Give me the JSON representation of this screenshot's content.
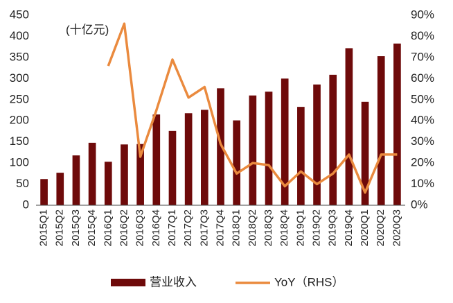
{
  "chart_data": {
    "type": "bar_line",
    "annotation": "(十亿元)",
    "categories": [
      "2015Q1",
      "2015Q2",
      "2015Q3",
      "2015Q4",
      "2016Q1",
      "2016Q2",
      "2016Q3",
      "2016Q4",
      "2017Q1",
      "2017Q2",
      "2017Q3",
      "2017Q4",
      "2018Q1",
      "2018Q2",
      "2018Q3",
      "2018Q4",
      "2019Q1",
      "2019Q2",
      "2019Q3",
      "2019Q4",
      "2020Q1",
      "2020Q2",
      "2020Q3"
    ],
    "series": [
      {
        "name": "营业收入",
        "type": "bar",
        "color": "#6e0a0a",
        "values": [
          62,
          77,
          118,
          148,
          103,
          144,
          145,
          215,
          176,
          218,
          226,
          277,
          201,
          260,
          269,
          300,
          233,
          286,
          309,
          372,
          245,
          353,
          383
        ]
      },
      {
        "name": "YoY（RHS）",
        "type": "line",
        "axis": "y2",
        "color": "#ea8a3e",
        "values": [
          null,
          null,
          null,
          null,
          66,
          86,
          23,
          45,
          69,
          51,
          56,
          29,
          15,
          20,
          19,
          9,
          16,
          10,
          15,
          24,
          6,
          24,
          24
        ]
      }
    ],
    "ylim": [
      0,
      450
    ],
    "yticks": [
      0,
      50,
      100,
      150,
      200,
      250,
      300,
      350,
      400,
      450
    ],
    "y2lim": [
      0,
      90
    ],
    "y2ticks": [
      {
        "value": 0,
        "label": "0%"
      },
      {
        "value": 10,
        "label": "10%"
      },
      {
        "value": 20,
        "label": "20%"
      },
      {
        "value": 30,
        "label": "30%"
      },
      {
        "value": 40,
        "label": "40%"
      },
      {
        "value": 50,
        "label": "50%"
      },
      {
        "value": 60,
        "label": "60%"
      },
      {
        "value": 70,
        "label": "70%"
      },
      {
        "value": 80,
        "label": "80%"
      },
      {
        "value": 90,
        "label": "90%"
      }
    ]
  }
}
